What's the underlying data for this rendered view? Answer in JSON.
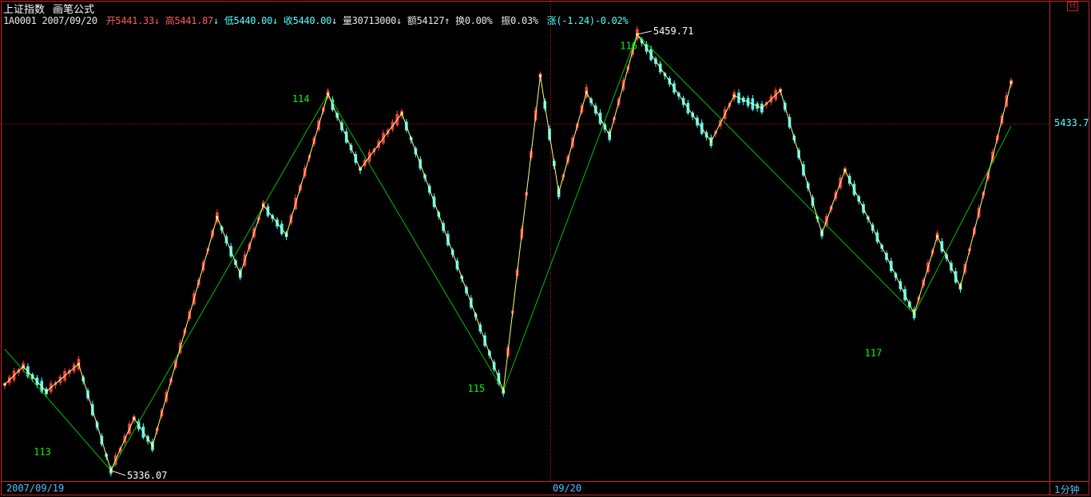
{
  "header": {
    "title": "上证指数",
    "formula": "画笔公式",
    "code": "1A0001",
    "date": "2007/09/20",
    "open_label": "开",
    "open": "5441.33",
    "high_label": "高",
    "high": "5441.87",
    "low_label": "低",
    "low": "5440.00",
    "close_label": "收",
    "close": "5440.00",
    "volume_label": "量",
    "volume": "30713000",
    "amount_label": "额",
    "amount": "54127",
    "turnover_label": "换",
    "turnover": "0.00%",
    "amplitude_label": "振",
    "amplitude": "0.03%",
    "change_label": "涨",
    "change": "(-1.24)-0.02%",
    "arrow_down": "↓",
    "arrow_up": "↑"
  },
  "footer": {
    "date_left": "2007/09/19",
    "date_mid": "09/20",
    "period": "1分钟"
  },
  "corner_button": "日",
  "colors": {
    "up": "#ff4040",
    "down": "#54ffff",
    "stroke_line": "#ffff80",
    "segment_line": "#00c000",
    "frame": "#cc2222",
    "label_green": "#00ff00",
    "text": "#ffffff"
  },
  "chart_data": {
    "type": "candlestick",
    "series_name": "上证指数",
    "price_marker": "5433.7",
    "extreme_labels": [
      {
        "text": "5336.07",
        "bar": 23
      },
      {
        "text": "5459.71",
        "bar": 137
      }
    ],
    "segment_labels": [
      {
        "text": "113",
        "bar": 8,
        "price": 5340.5
      },
      {
        "text": "114",
        "bar": 64,
        "price": 5440.5
      },
      {
        "text": "115",
        "bar": 102,
        "price": 5358.5
      },
      {
        "text": "116",
        "bar": 135,
        "price": 5455.5
      },
      {
        "text": "117",
        "bar": 188,
        "price": 5368.5
      }
    ],
    "bi_points": [
      {
        "bar": 0,
        "price": 5360.5
      },
      {
        "bar": 4,
        "price": 5365.6
      },
      {
        "bar": 9,
        "price": 5358.5
      },
      {
        "bar": 16,
        "price": 5366.3
      },
      {
        "bar": 23,
        "price": 5336.1
      },
      {
        "bar": 28,
        "price": 5350.9
      },
      {
        "bar": 32,
        "price": 5343.1
      },
      {
        "bar": 46,
        "price": 5407.9
      },
      {
        "bar": 51,
        "price": 5391.8
      },
      {
        "bar": 56,
        "price": 5411.3
      },
      {
        "bar": 61,
        "price": 5402.9
      },
      {
        "bar": 70,
        "price": 5442.8
      },
      {
        "bar": 77,
        "price": 5421.5
      },
      {
        "bar": 86,
        "price": 5437.3
      },
      {
        "bar": 108,
        "price": 5358.6
      },
      {
        "bar": 116,
        "price": 5448.0
      },
      {
        "bar": 120,
        "price": 5414.8
      },
      {
        "bar": 126,
        "price": 5443.3
      },
      {
        "bar": 131,
        "price": 5431.0
      },
      {
        "bar": 137,
        "price": 5459.7
      },
      {
        "bar": 153,
        "price": 5429.3
      },
      {
        "bar": 158,
        "price": 5442.3
      },
      {
        "bar": 164,
        "price": 5438.8
      },
      {
        "bar": 168,
        "price": 5443.8
      },
      {
        "bar": 177,
        "price": 5403.3
      },
      {
        "bar": 182,
        "price": 5421.2
      },
      {
        "bar": 197,
        "price": 5380.5
      },
      {
        "bar": 202,
        "price": 5402.5
      },
      {
        "bar": 207,
        "price": 5388.1
      },
      {
        "bar": 218,
        "price": 5446.1
      }
    ],
    "segment_points": [
      {
        "bar": 0,
        "price": 5370.5
      },
      {
        "bar": 23,
        "price": 5336.1
      },
      {
        "bar": 70,
        "price": 5442.8
      },
      {
        "bar": 108,
        "price": 5358.6
      },
      {
        "bar": 137,
        "price": 5459.7
      },
      {
        "bar": 197,
        "price": 5380.5
      },
      {
        "bar": 218,
        "price": 5433.7
      }
    ]
  }
}
